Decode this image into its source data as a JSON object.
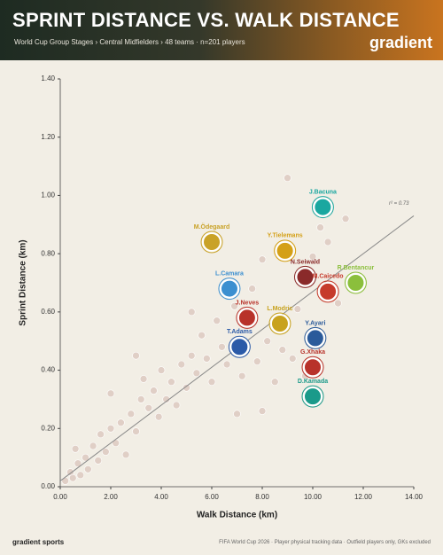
{
  "header": {
    "title": "SPRINT DISTANCE VS. WALK DISTANCE",
    "subtitle": "World Cup Group Stages › Central Midfielders › 48 teams · n=201 players",
    "logo": "gradient"
  },
  "footer": {
    "brand": "gradient sports",
    "note": "FIFA World Cup 2026 · Player physical tracking data · Outfield players only, GKs excluded"
  },
  "chart_data": {
    "type": "scatter",
    "x_label": "Walk Distance (km)",
    "y_label": "Sprint Distance (km)",
    "xlim": [
      0,
      14
    ],
    "ylim": [
      0,
      1.4
    ],
    "xticks": [
      {
        "value": 0,
        "label": "0.00"
      },
      {
        "value": 2,
        "label": "2.00"
      },
      {
        "value": 4,
        "label": "4.00"
      },
      {
        "value": 6,
        "label": "6.00"
      },
      {
        "value": 8,
        "label": "8.00"
      },
      {
        "value": 10,
        "label": "10.00"
      },
      {
        "value": 12,
        "label": "12.00"
      },
      {
        "value": 14,
        "label": "14.00"
      }
    ],
    "yticks": [
      {
        "value": 0,
        "label": "0.00"
      },
      {
        "value": 0.2,
        "label": "0.20"
      },
      {
        "value": 0.4,
        "label": "0.40"
      },
      {
        "value": 0.6,
        "label": "0.60"
      },
      {
        "value": 0.8,
        "label": "0.80"
      },
      {
        "value": 1.0,
        "label": "1.00"
      },
      {
        "value": 1.2,
        "label": "1.20"
      },
      {
        "value": 1.4,
        "label": "1.40"
      }
    ],
    "background_points": {
      "color": "#c9a9a0",
      "x": [
        0.2,
        0.4,
        0.5,
        0.7,
        0.8,
        1.0,
        1.1,
        1.3,
        1.5,
        1.6,
        1.8,
        2.0,
        2.2,
        2.4,
        2.6,
        2.8,
        3.0,
        3.2,
        3.3,
        3.5,
        3.7,
        3.9,
        4.0,
        4.2,
        4.4,
        4.6,
        4.8,
        5.0,
        5.2,
        5.4,
        5.6,
        5.8,
        6.0,
        6.2,
        6.4,
        6.6,
        6.9,
        7.2,
        7.6,
        7.8,
        8.0,
        8.2,
        8.5,
        8.8,
        9.0,
        9.2,
        9.4,
        9.7,
        10.0,
        10.3,
        10.6,
        11.0,
        11.3,
        5.2,
        3.0,
        2.0,
        0.6,
        7.0,
        8.0
      ],
      "y": [
        0.02,
        0.05,
        0.03,
        0.08,
        0.04,
        0.1,
        0.06,
        0.14,
        0.09,
        0.18,
        0.12,
        0.2,
        0.15,
        0.22,
        0.11,
        0.25,
        0.19,
        0.3,
        0.37,
        0.27,
        0.33,
        0.24,
        0.4,
        0.3,
        0.36,
        0.28,
        0.42,
        0.34,
        0.45,
        0.39,
        0.52,
        0.44,
        0.36,
        0.57,
        0.48,
        0.42,
        0.62,
        0.38,
        0.68,
        0.43,
        0.78,
        0.5,
        0.36,
        0.47,
        1.06,
        0.44,
        0.61,
        0.38,
        0.79,
        0.89,
        0.84,
        0.63,
        0.92,
        0.6,
        0.45,
        0.32,
        0.13,
        0.25,
        0.26
      ]
    },
    "highlighted": {
      "names": [
        "J.Bacuna",
        "M.Ödegaard",
        "Y.Tielemans",
        "N.Seiwald",
        "R.Bentancur",
        "L.Camara",
        "M.Caicedo",
        "L.Modric",
        "J.Neves",
        "Y.Ayari",
        "T.Adams",
        "G.Xhaka",
        "D.Kamada"
      ],
      "x": [
        10.4,
        6.0,
        8.9,
        9.7,
        11.7,
        6.7,
        10.6,
        8.7,
        7.4,
        10.1,
        7.1,
        10.0,
        10.0
      ],
      "y": [
        0.96,
        0.84,
        0.81,
        0.72,
        0.7,
        0.68,
        0.67,
        0.56,
        0.58,
        0.51,
        0.48,
        0.41,
        0.31
      ],
      "colors": [
        "#1aa7a0",
        "#c9a227",
        "#d4a017",
        "#8a2a2a",
        "#8bbf3c",
        "#3b8fd0",
        "#c63b2c",
        "#c8a21e",
        "#b8322a",
        "#2a5a9a",
        "#2b5aa8",
        "#b8322a",
        "#1a9a8a"
      ]
    },
    "trendline": {
      "x": [
        0,
        14
      ],
      "y": [
        0.02,
        0.93
      ],
      "color": "#888888"
    },
    "annotation": "r² = 0.73"
  }
}
